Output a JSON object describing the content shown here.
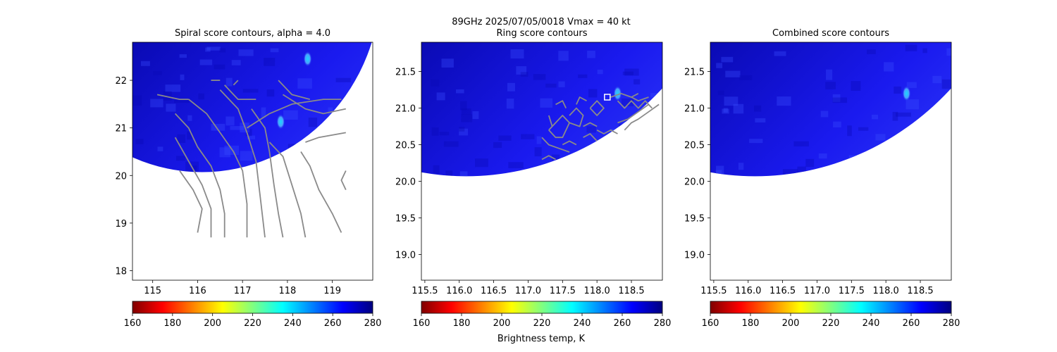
{
  "suptitle_line1": "89GHz  2025/07/05/0018    Vmax = 40 kt",
  "colorbar_label": "Brightness temp, K",
  "colors": {
    "contour": "#8a8a8a",
    "field_base": "#1a1aef",
    "field_dark": "#0a0ab4",
    "field_light": "#3a4cff",
    "hot_spot": "#19d8ff",
    "center_marker": "#ffffff"
  },
  "colormap": "jet_r",
  "chart_data": [
    {
      "type": "heatmap",
      "title": "Spiral score contours, alpha =  4.0",
      "xlim": [
        114.55,
        119.9
      ],
      "ylim": [
        17.8,
        22.8
      ],
      "xticks": [
        115,
        116,
        117,
        118,
        119
      ],
      "yticks": [
        18,
        19,
        20,
        21,
        22
      ],
      "xtick_labels": [
        "115",
        "116",
        "117",
        "118",
        "119"
      ],
      "ytick_labels": [
        "18",
        "19",
        "20",
        "21",
        "22"
      ],
      "colorbar": {
        "min": 160,
        "max": 280,
        "ticks": [
          160,
          180,
          200,
          220,
          240,
          260,
          280
        ],
        "tick_labels": [
          "160",
          "180",
          "200",
          "220",
          "240",
          "260",
          "280"
        ]
      },
      "swath": {
        "center": [
          116.1,
          24.05
        ],
        "radius": 3.98
      },
      "hot_spots": [
        [
          117.85,
          21.13
        ],
        [
          118.45,
          22.45
        ]
      ],
      "contours": [
        [
          [
            115.6,
            20.1
          ],
          [
            115.9,
            19.7
          ],
          [
            116.1,
            19.3
          ],
          [
            116.0,
            18.8
          ]
        ],
        [
          [
            115.5,
            20.8
          ],
          [
            115.8,
            20.3
          ],
          [
            116.1,
            19.8
          ],
          [
            116.3,
            19.3
          ],
          [
            116.3,
            18.7
          ]
        ],
        [
          [
            115.5,
            21.3
          ],
          [
            115.8,
            21.0
          ],
          [
            116.0,
            20.6
          ],
          [
            116.3,
            20.2
          ],
          [
            116.5,
            19.7
          ],
          [
            116.6,
            19.2
          ],
          [
            116.6,
            18.7
          ]
        ],
        [
          [
            115.8,
            21.6
          ],
          [
            116.2,
            21.3
          ],
          [
            116.5,
            20.9
          ],
          [
            116.8,
            20.5
          ],
          [
            117.0,
            20.1
          ],
          [
            117.1,
            19.4
          ],
          [
            117.1,
            18.7
          ]
        ],
        [
          [
            116.5,
            21.8
          ],
          [
            116.9,
            21.4
          ],
          [
            117.1,
            20.9
          ],
          [
            117.3,
            20.3
          ],
          [
            117.4,
            19.5
          ],
          [
            117.5,
            18.7
          ]
        ],
        [
          [
            117.2,
            21.4
          ],
          [
            117.5,
            21.0
          ],
          [
            117.6,
            20.5
          ],
          [
            117.7,
            19.8
          ],
          [
            117.8,
            19.2
          ],
          [
            117.9,
            18.7
          ]
        ],
        [
          [
            117.6,
            20.7
          ],
          [
            117.9,
            20.4
          ],
          [
            118.1,
            19.8
          ],
          [
            118.3,
            19.2
          ],
          [
            118.4,
            18.7
          ]
        ],
        [
          [
            118.3,
            20.5
          ],
          [
            118.5,
            20.2
          ],
          [
            118.7,
            19.7
          ],
          [
            119.0,
            19.2
          ],
          [
            119.2,
            18.8
          ]
        ],
        [
          [
            117.9,
            21.7
          ],
          [
            118.4,
            21.4
          ],
          [
            118.8,
            21.3
          ],
          [
            119.3,
            21.4
          ]
        ],
        [
          [
            117.1,
            21.0
          ],
          [
            117.6,
            21.3
          ],
          [
            118.1,
            21.5
          ],
          [
            118.8,
            21.6
          ],
          [
            119.2,
            21.6
          ]
        ],
        [
          [
            116.6,
            21.9
          ],
          [
            116.9,
            21.6
          ],
          [
            117.3,
            21.6
          ]
        ],
        [
          [
            118.4,
            20.7
          ],
          [
            118.7,
            20.8
          ],
          [
            119.3,
            20.9
          ]
        ],
        [
          [
            119.3,
            20.1
          ],
          [
            119.2,
            19.9
          ],
          [
            119.3,
            19.7
          ]
        ],
        [
          [
            115.1,
            21.7
          ],
          [
            115.6,
            21.6
          ],
          [
            115.8,
            21.6
          ]
        ],
        [
          [
            116.3,
            22.0
          ],
          [
            116.5,
            22.0
          ]
        ],
        [
          [
            116.8,
            21.9
          ],
          [
            116.9,
            22.0
          ]
        ],
        [
          [
            117.8,
            22.0
          ],
          [
            118.1,
            21.7
          ],
          [
            118.5,
            21.6
          ]
        ]
      ]
    },
    {
      "type": "heatmap",
      "title": "Ring score contours",
      "xlim": [
        115.45,
        118.95
      ],
      "ylim": [
        18.65,
        21.9
      ],
      "xticks": [
        115.5,
        116.0,
        116.5,
        117.0,
        117.5,
        118.0,
        118.5
      ],
      "yticks": [
        19.0,
        19.5,
        20.0,
        20.5,
        21.0,
        21.5
      ],
      "xtick_labels": [
        "115.5",
        "116.0",
        "116.5",
        "117.0",
        "117.5",
        "118.0",
        "118.5"
      ],
      "ytick_labels": [
        "19.0",
        "19.5",
        "20.0",
        "20.5",
        "21.0",
        "21.5"
      ],
      "colorbar": {
        "min": 160,
        "max": 280,
        "ticks": [
          160,
          180,
          200,
          220,
          240,
          260,
          280
        ],
        "tick_labels": [
          "160",
          "180",
          "200",
          "220",
          "240",
          "260",
          "280"
        ]
      },
      "swath": {
        "center": [
          116.1,
          24.05
        ],
        "radius": 3.98
      },
      "hot_spots": [
        [
          118.3,
          21.2
        ]
      ],
      "center_marker": [
        118.15,
        21.15
      ],
      "contours": [
        [
          [
            117.3,
            20.7
          ],
          [
            117.4,
            20.8
          ],
          [
            117.5,
            20.9
          ],
          [
            117.6,
            20.8
          ],
          [
            117.5,
            20.6
          ],
          [
            117.4,
            20.6
          ],
          [
            117.3,
            20.7
          ]
        ],
        [
          [
            117.6,
            20.9
          ],
          [
            117.7,
            21.0
          ],
          [
            117.8,
            20.9
          ],
          [
            117.75,
            20.75
          ],
          [
            117.6,
            20.8
          ]
        ],
        [
          [
            117.9,
            21.0
          ],
          [
            118.0,
            21.1
          ],
          [
            118.1,
            21.0
          ],
          [
            118.0,
            20.9
          ],
          [
            117.9,
            21.0
          ]
        ],
        [
          [
            117.4,
            21.05
          ],
          [
            117.5,
            21.1
          ],
          [
            117.55,
            21.0
          ]
        ],
        [
          [
            118.3,
            21.1
          ],
          [
            118.4,
            21.0
          ],
          [
            118.5,
            21.1
          ],
          [
            118.6,
            21.0
          ],
          [
            118.7,
            21.1
          ],
          [
            118.8,
            21.0
          ]
        ],
        [
          [
            118.5,
            21.15
          ],
          [
            118.6,
            21.1
          ],
          [
            118.75,
            21.15
          ]
        ],
        [
          [
            118.2,
            21.15
          ],
          [
            118.35,
            21.2
          ],
          [
            118.5,
            21.15
          ],
          [
            118.6,
            21.2
          ]
        ],
        [
          [
            117.2,
            20.6
          ],
          [
            117.3,
            20.5
          ],
          [
            117.45,
            20.45
          ],
          [
            117.6,
            20.4
          ]
        ],
        [
          [
            117.3,
            20.9
          ],
          [
            117.35,
            20.75
          ]
        ],
        [
          [
            117.5,
            20.5
          ],
          [
            117.6,
            20.55
          ],
          [
            117.7,
            20.5
          ]
        ],
        [
          [
            117.8,
            20.6
          ],
          [
            117.9,
            20.65
          ],
          [
            118.0,
            20.55
          ]
        ],
        [
          [
            118.0,
            20.7
          ],
          [
            118.1,
            20.65
          ],
          [
            118.2,
            20.7
          ],
          [
            118.3,
            20.65
          ]
        ],
        [
          [
            118.4,
            20.7
          ],
          [
            118.5,
            20.8
          ],
          [
            118.6,
            20.85
          ],
          [
            118.75,
            20.95
          ],
          [
            118.9,
            21.05
          ]
        ],
        [
          [
            118.3,
            20.8
          ],
          [
            118.45,
            20.85
          ],
          [
            118.6,
            20.95
          ],
          [
            118.75,
            21.05
          ]
        ],
        [
          [
            117.8,
            20.75
          ],
          [
            117.9,
            20.8
          ],
          [
            118.0,
            20.75
          ]
        ],
        [
          [
            117.2,
            20.3
          ],
          [
            117.3,
            20.35
          ],
          [
            117.4,
            20.3
          ]
        ],
        [
          [
            117.7,
            21.05
          ],
          [
            117.75,
            21.15
          ],
          [
            117.85,
            21.1
          ]
        ]
      ]
    },
    {
      "type": "heatmap",
      "title": "Combined score contours",
      "xlim": [
        115.45,
        118.95
      ],
      "ylim": [
        18.65,
        21.9
      ],
      "xticks": [
        115.5,
        116.0,
        116.5,
        117.0,
        117.5,
        118.0,
        118.5
      ],
      "yticks": [
        19.0,
        19.5,
        20.0,
        20.5,
        21.0,
        21.5
      ],
      "xtick_labels": [
        "115.5",
        "116.0",
        "116.5",
        "117.0",
        "117.5",
        "118.0",
        "118.5"
      ],
      "ytick_labels": [
        "19.0",
        "19.5",
        "20.0",
        "20.5",
        "21.0",
        "21.5"
      ],
      "colorbar": {
        "min": 160,
        "max": 280,
        "ticks": [
          160,
          180,
          200,
          220,
          240,
          260,
          280
        ],
        "tick_labels": [
          "160",
          "180",
          "200",
          "220",
          "240",
          "260",
          "280"
        ]
      },
      "swath": {
        "center": [
          116.1,
          24.05
        ],
        "radius": 3.98
      },
      "hot_spots": [
        [
          118.3,
          21.2
        ]
      ],
      "contours": []
    }
  ]
}
